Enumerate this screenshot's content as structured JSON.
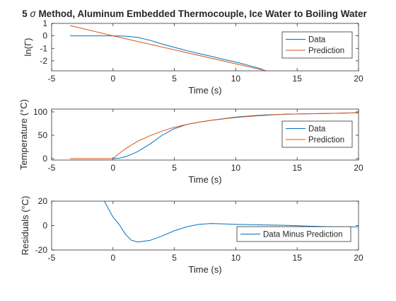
{
  "colors": {
    "data": "#0072BD",
    "prediction": "#D95319",
    "axis": "#262626",
    "background": "#FFFFFF"
  },
  "chart_data": [
    {
      "type": "line",
      "title_prefix": "5 ",
      "title_symbol": "σ",
      "title_suffix": " Method, Aluminum Embedded Thermocouple, Ice Water to Boiling Water",
      "xlabel": "Time (s)",
      "ylabel": "ln(Γ)",
      "xlim": [
        -5,
        20
      ],
      "ylim": [
        -2.8,
        1
      ],
      "xticks": [
        -5,
        0,
        5,
        10,
        15,
        20
      ],
      "xtick_labels": [
        "-5",
        "0",
        "5",
        "10",
        "15",
        "20"
      ],
      "yticks": [
        1,
        0,
        -1,
        -2
      ],
      "ytick_labels": [
        "1",
        "0",
        "-1",
        "-2"
      ],
      "grid": false,
      "legend_position": "top-right",
      "series": [
        {
          "name": "Data",
          "color": "#0072BD",
          "x": [
            -3.5,
            -2,
            -1,
            0,
            1,
            2,
            3,
            4,
            5,
            6,
            7,
            8,
            9,
            10,
            11,
            12,
            12.4
          ],
          "y": [
            0,
            0,
            0,
            0,
            -0.02,
            -0.12,
            -0.35,
            -0.65,
            -0.92,
            -1.18,
            -1.42,
            -1.64,
            -1.88,
            -2.1,
            -2.35,
            -2.62,
            -2.8
          ]
        },
        {
          "name": "Prediction",
          "color": "#D95319",
          "x": [
            -3.5,
            0,
            12.5
          ],
          "y": [
            0.83,
            0,
            -2.8
          ]
        }
      ]
    },
    {
      "type": "line",
      "xlabel": "Time (s)",
      "ylabel": "Temperature (°C)",
      "xlim": [
        -5,
        20
      ],
      "ylim": [
        -3,
        106
      ],
      "xticks": [
        -5,
        0,
        5,
        10,
        15,
        20
      ],
      "xtick_labels": [
        "-5",
        "0",
        "5",
        "10",
        "15",
        "20"
      ],
      "yticks": [
        0,
        50,
        100
      ],
      "ytick_labels": [
        "0",
        "50",
        "100"
      ],
      "grid": false,
      "legend_position": "right",
      "series": [
        {
          "name": "Data",
          "color": "#0072BD",
          "x": [
            -3.5,
            -2,
            -1,
            0,
            0.5,
            1,
            1.5,
            2,
            3,
            4,
            5,
            6,
            7,
            8,
            10,
            12,
            14,
            16,
            18,
            20
          ],
          "y": [
            0,
            0,
            0,
            0,
            1,
            4,
            9,
            15,
            31,
            50,
            64,
            73,
            78,
            82,
            89,
            93,
            95,
            96,
            97,
            98
          ]
        },
        {
          "name": "Prediction",
          "color": "#D95319",
          "x": [
            -3.5,
            -1,
            0,
            0.5,
            1,
            2,
            3,
            4,
            5,
            6,
            7,
            8,
            10,
            12,
            14,
            16,
            18,
            20
          ],
          "y": [
            0,
            0,
            0,
            11,
            21,
            37,
            49,
            59,
            67,
            73,
            78,
            82,
            88,
            92,
            95,
            96,
            97,
            98
          ]
        }
      ]
    },
    {
      "type": "line",
      "xlabel": "Time (s)",
      "ylabel": "Residuals (°C)",
      "xlim": [
        -5,
        20
      ],
      "ylim": [
        -20,
        20
      ],
      "xticks": [
        -5,
        0,
        5,
        10,
        15,
        20
      ],
      "xtick_labels": [
        "-5",
        "0",
        "5",
        "10",
        "15",
        "20"
      ],
      "yticks": [
        20,
        0,
        -20
      ],
      "ytick_labels": [
        "20",
        "0",
        "-20"
      ],
      "grid": false,
      "legend_position": "right",
      "series": [
        {
          "name": "Data Minus Prediction",
          "color": "#0072BD",
          "x": [
            -0.7,
            -0.3,
            0,
            0.5,
            1,
            1.5,
            2,
            3,
            4,
            5,
            6,
            7,
            8,
            9,
            10,
            12,
            14,
            16,
            18,
            20
          ],
          "y": [
            20,
            12.5,
            7,
            1,
            -7,
            -12,
            -13.5,
            -12.2,
            -8.5,
            -4.2,
            -1,
            1,
            1.7,
            1.4,
            1,
            0.6,
            0.2,
            -0.5,
            -1,
            -1
          ]
        }
      ]
    }
  ]
}
